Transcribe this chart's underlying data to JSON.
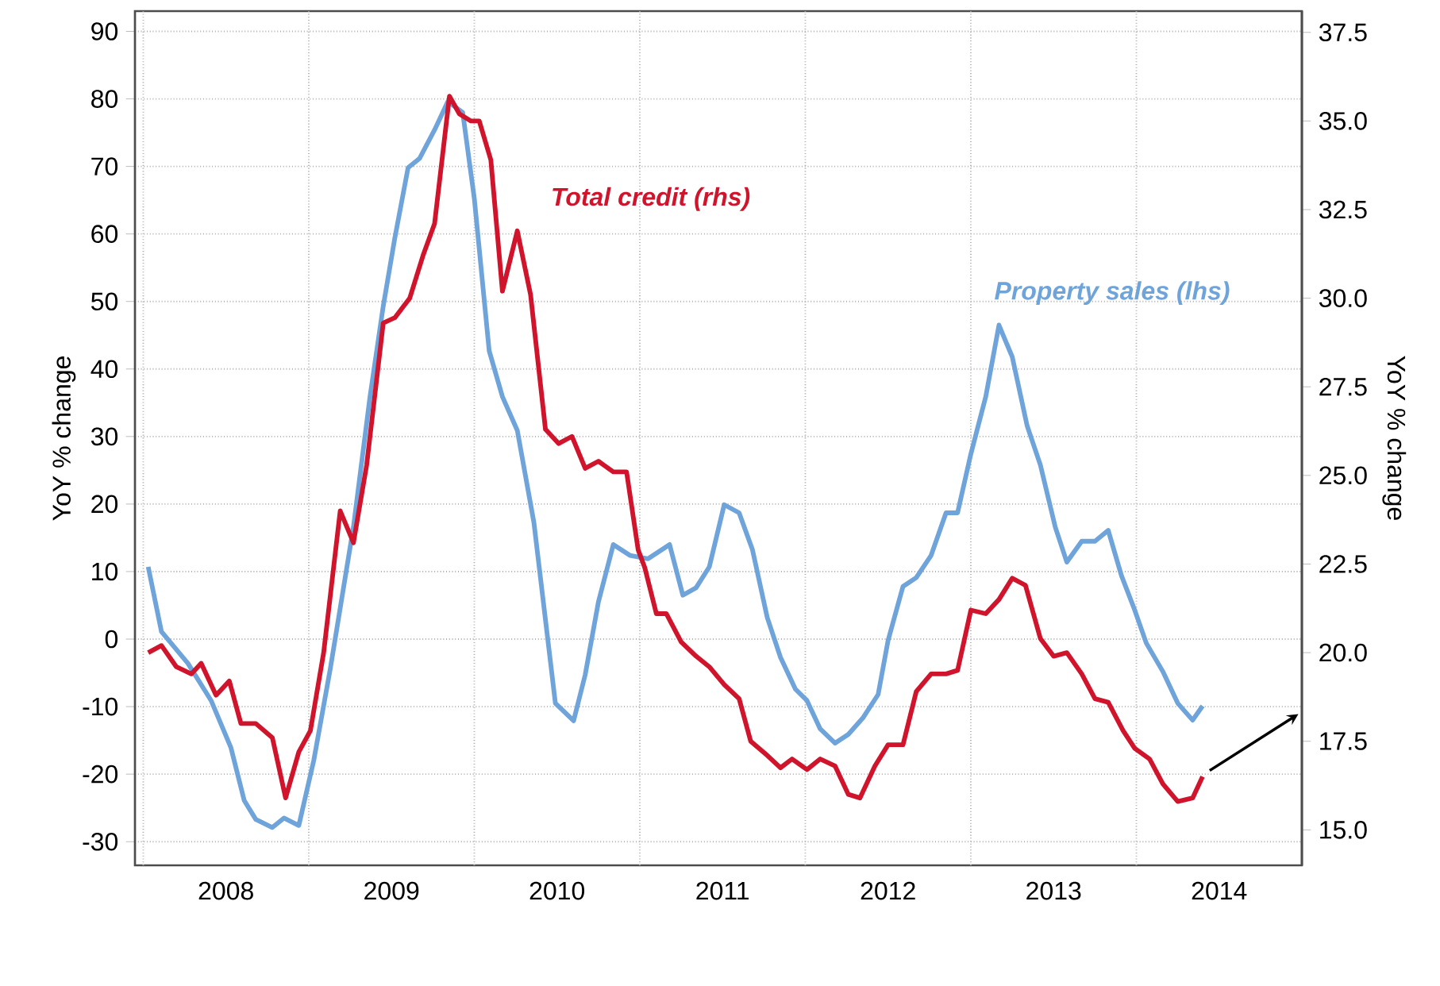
{
  "chart_data": {
    "type": "line",
    "xlim": [
      2007.95,
      2015.0
    ],
    "xticks": [
      {
        "value": 2008,
        "label": null
      },
      {
        "value": 2008.5,
        "label": "2008"
      },
      {
        "value": 2009,
        "label": null
      },
      {
        "value": 2009.5,
        "label": "2009"
      },
      {
        "value": 2010,
        "label": null
      },
      {
        "value": 2010.5,
        "label": "2010"
      },
      {
        "value": 2011,
        "label": null
      },
      {
        "value": 2011.5,
        "label": "2011"
      },
      {
        "value": 2012,
        "label": null
      },
      {
        "value": 2012.5,
        "label": "2012"
      },
      {
        "value": 2013,
        "label": null
      },
      {
        "value": 2013.5,
        "label": "2013"
      },
      {
        "value": 2014,
        "label": null
      },
      {
        "value": 2014.5,
        "label": "2014"
      }
    ],
    "ylim": [
      -33.5,
      93
    ],
    "yticks": [
      -30,
      -20,
      -10,
      0,
      10,
      20,
      30,
      40,
      50,
      60,
      70,
      80,
      90
    ],
    "y2lim": [
      14.0,
      38.1
    ],
    "y2ticks": [
      {
        "value": 15.0,
        "label": "15.0"
      },
      {
        "value": 17.5,
        "label": "17.5"
      },
      {
        "value": 20.0,
        "label": "20.0"
      },
      {
        "value": 22.5,
        "label": "22.5"
      },
      {
        "value": 25.0,
        "label": "25.0"
      },
      {
        "value": 27.5,
        "label": "27.5"
      },
      {
        "value": 30.0,
        "label": "30.0"
      },
      {
        "value": 32.5,
        "label": "32.5"
      },
      {
        "value": 35.0,
        "label": "35.0"
      },
      {
        "value": 37.5,
        "label": "37.5"
      }
    ],
    "ylabel": "YoY % change",
    "y2label": "YoY % change",
    "grid": true,
    "series": [
      {
        "name": "Property sales (lhs)",
        "color": "#6fa4db",
        "x": [
          2008.03,
          2008.11,
          2008.27,
          2008.41,
          2008.53,
          2008.61,
          2008.68,
          2008.78,
          2008.85,
          2008.94,
          2009.03,
          2009.13,
          2009.27,
          2009.37,
          2009.45,
          2009.52,
          2009.6,
          2009.67,
          2009.76,
          2009.84,
          2009.93,
          2010.0,
          2010.09,
          2010.17,
          2010.26,
          2010.36,
          2010.49,
          2010.6,
          2010.67,
          2010.75,
          2010.84,
          2010.94,
          2011.05,
          2011.18,
          2011.26,
          2011.34,
          2011.42,
          2011.51,
          2011.6,
          2011.68,
          2011.77,
          2011.85,
          2011.94,
          2012.01,
          2012.09,
          2012.18,
          2012.26,
          2012.35,
          2012.44,
          2012.5,
          2012.59,
          2012.67,
          2012.76,
          2012.85,
          2012.92,
          2013.0,
          2013.09,
          2013.17,
          2013.25,
          2013.34,
          2013.42,
          2013.51,
          2013.58,
          2013.67,
          2013.75,
          2013.83,
          2013.91,
          2013.99,
          2014.06,
          2014.16,
          2014.25,
          2014.34,
          2014.4
        ],
        "values": [
          10.7,
          1.1,
          -3.6,
          -9.1,
          -16.1,
          -23.9,
          -26.7,
          -27.9,
          -26.5,
          -27.6,
          -18.0,
          -4.4,
          16.6,
          35.9,
          49.3,
          59.4,
          69.8,
          71.2,
          75.4,
          79.6,
          78.0,
          65.3,
          42.7,
          35.9,
          30.9,
          17.3,
          -9.5,
          -12.1,
          -5.3,
          5.5,
          14.0,
          12.4,
          11.9,
          14.0,
          6.5,
          7.6,
          10.7,
          19.9,
          18.7,
          13.3,
          3.2,
          -2.7,
          -7.4,
          -9.1,
          -13.3,
          -15.4,
          -14.1,
          -11.6,
          -8.2,
          -0.2,
          7.8,
          9.1,
          12.4,
          18.7,
          18.7,
          27.4,
          35.9,
          46.5,
          41.8,
          31.6,
          25.8,
          16.6,
          11.4,
          14.5,
          14.5,
          16.1,
          9.4,
          4.3,
          -0.6,
          -4.8,
          -9.5,
          -12.0,
          -9.9
        ]
      },
      {
        "name": "Total credit (rhs)",
        "color": "#d0142c",
        "axis": "y2",
        "x": [
          2008.03,
          2008.11,
          2008.2,
          2008.29,
          2008.35,
          2008.44,
          2008.52,
          2008.59,
          2008.68,
          2008.78,
          2008.86,
          2008.94,
          2009.01,
          2009.09,
          2009.19,
          2009.27,
          2009.35,
          2009.45,
          2009.52,
          2009.61,
          2009.69,
          2009.76,
          2009.85,
          2009.91,
          2009.98,
          2010.03,
          2010.1,
          2010.17,
          2010.26,
          2010.34,
          2010.43,
          2010.51,
          2010.59,
          2010.67,
          2010.75,
          2010.84,
          2010.92,
          2010.99,
          2011.03,
          2011.1,
          2011.16,
          2011.25,
          2011.34,
          2011.42,
          2011.51,
          2011.6,
          2011.67,
          2011.77,
          2011.85,
          2011.92,
          2012.01,
          2012.09,
          2012.18,
          2012.26,
          2012.33,
          2012.42,
          2012.5,
          2012.59,
          2012.67,
          2012.76,
          2012.85,
          2012.92,
          2013.0,
          2013.09,
          2013.17,
          2013.25,
          2013.33,
          2013.42,
          2013.5,
          2013.58,
          2013.67,
          2013.75,
          2013.83,
          2013.92,
          2013.99,
          2014.08,
          2014.16,
          2014.25,
          2014.34,
          2014.4
        ],
        "values": [
          20.0,
          20.2,
          19.6,
          19.4,
          19.7,
          18.8,
          19.2,
          18.0,
          18.0,
          17.6,
          15.9,
          17.2,
          17.8,
          20.0,
          24.0,
          23.1,
          25.3,
          29.3,
          29.45,
          30.0,
          31.2,
          32.1,
          35.7,
          35.2,
          35.0,
          35.0,
          33.9,
          30.2,
          31.9,
          30.1,
          26.3,
          25.9,
          26.1,
          25.2,
          25.4,
          25.1,
          25.1,
          22.9,
          22.4,
          21.1,
          21.1,
          20.3,
          19.9,
          19.6,
          19.1,
          18.7,
          17.5,
          17.1,
          16.75,
          17.0,
          16.7,
          17.0,
          16.8,
          16.0,
          15.9,
          16.8,
          17.4,
          17.4,
          18.9,
          19.4,
          19.4,
          19.5,
          21.2,
          21.1,
          21.5,
          22.1,
          21.9,
          20.4,
          19.9,
          20.0,
          19.4,
          18.7,
          18.6,
          17.8,
          17.3,
          17.0,
          16.3,
          15.8,
          15.9,
          16.5
        ]
      }
    ]
  }
}
